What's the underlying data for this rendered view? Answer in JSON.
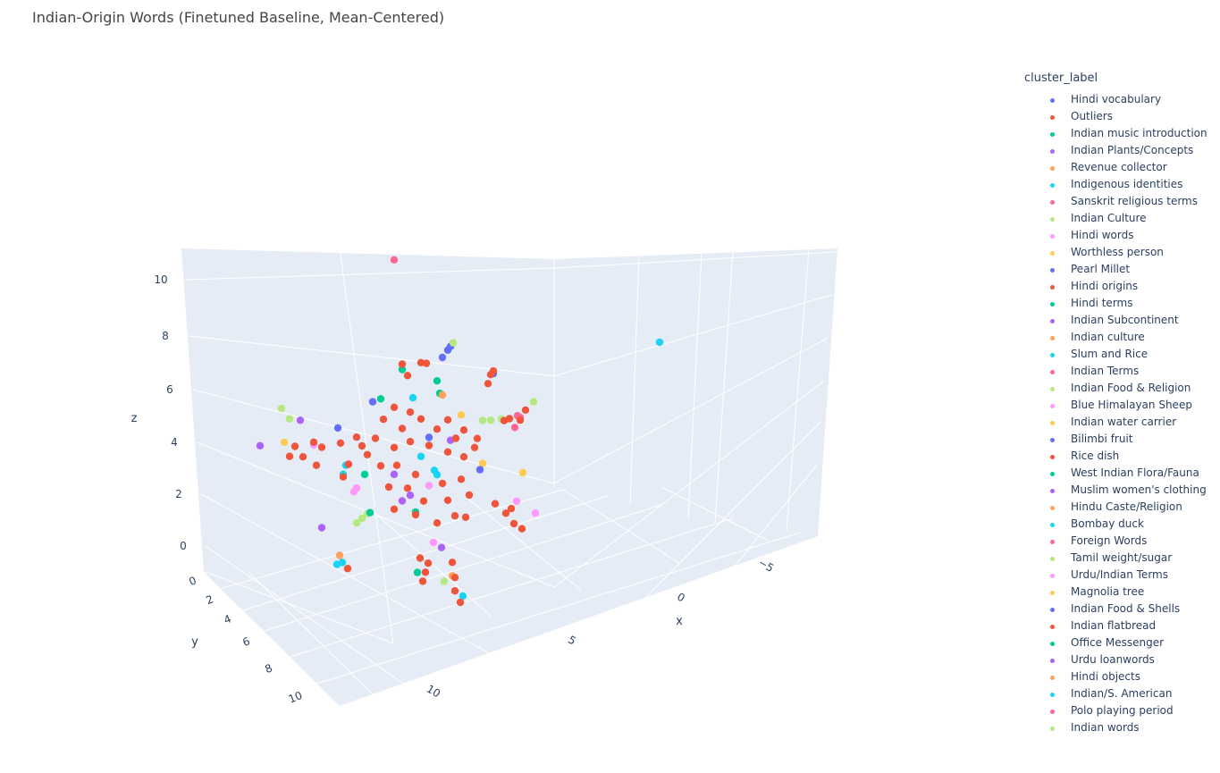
{
  "title": "Indian-Origin Words (Finetuned Baseline, Mean-Centered)",
  "legend": {
    "title": "cluster_label",
    "items": [
      {
        "label": "Hindi vocabulary",
        "color": "#636efa"
      },
      {
        "label": "Outliers",
        "color": "#EF553B"
      },
      {
        "label": "Indian music introduction",
        "color": "#00cc96"
      },
      {
        "label": "Indian Plants/Concepts",
        "color": "#ab63fa"
      },
      {
        "label": "Revenue collector",
        "color": "#FFA15A"
      },
      {
        "label": "Indigenous identities",
        "color": "#19d3f3"
      },
      {
        "label": "Sanskrit religious terms",
        "color": "#FF6692"
      },
      {
        "label": "Indian Culture",
        "color": "#B6E880"
      },
      {
        "label": "Hindi words",
        "color": "#FF97FF"
      },
      {
        "label": "Worthless person",
        "color": "#FECB52"
      },
      {
        "label": "Pearl Millet",
        "color": "#636efa"
      },
      {
        "label": "Hindi origins",
        "color": "#EF553B"
      },
      {
        "label": "Hindi terms",
        "color": "#00cc96"
      },
      {
        "label": "Indian Subcontinent",
        "color": "#ab63fa"
      },
      {
        "label": "Indian culture",
        "color": "#FFA15A"
      },
      {
        "label": "Slum and Rice",
        "color": "#19d3f3"
      },
      {
        "label": "Indian Terms",
        "color": "#FF6692"
      },
      {
        "label": "Indian Food & Religion",
        "color": "#B6E880"
      },
      {
        "label": "Blue Himalayan Sheep",
        "color": "#FF97FF"
      },
      {
        "label": "Indian water carrier",
        "color": "#FECB52"
      },
      {
        "label": "Bilimbi fruit",
        "color": "#636efa"
      },
      {
        "label": "Rice dish",
        "color": "#EF553B"
      },
      {
        "label": "West Indian Flora/Fauna",
        "color": "#00cc96"
      },
      {
        "label": "Muslim women's clothing",
        "color": "#ab63fa"
      },
      {
        "label": "Hindu Caste/Religion",
        "color": "#FFA15A"
      },
      {
        "label": "Bombay duck",
        "color": "#19d3f3"
      },
      {
        "label": "Foreign Words",
        "color": "#FF6692"
      },
      {
        "label": "Tamil weight/sugar",
        "color": "#B6E880"
      },
      {
        "label": "Urdu/Indian Terms",
        "color": "#FF97FF"
      },
      {
        "label": "Magnolia tree",
        "color": "#FECB52"
      },
      {
        "label": "Indian Food & Shells",
        "color": "#636efa"
      },
      {
        "label": "Indian flatbread",
        "color": "#EF553B"
      },
      {
        "label": "Office Messenger",
        "color": "#00cc96"
      },
      {
        "label": "Urdu loanwords",
        "color": "#ab63fa"
      },
      {
        "label": "Hindi objects",
        "color": "#FFA15A"
      },
      {
        "label": "Indian/S. American",
        "color": "#19d3f3"
      },
      {
        "label": "Polo playing period",
        "color": "#FF6692"
      },
      {
        "label": "Indian words",
        "color": "#B6E880"
      }
    ]
  },
  "chart_data": {
    "type": "scatter3d",
    "title": "Indian-Origin Words (Finetuned Baseline, Mean-Centered)",
    "xlabel": "x",
    "ylabel": "y",
    "zlabel": "z",
    "x_ticks": [
      "10",
      "5",
      "0",
      "−5"
    ],
    "y_ticks": [
      "0",
      "2",
      "4",
      "6",
      "8",
      "10"
    ],
    "z_ticks": [
      "10",
      "8",
      "6",
      "4",
      "2",
      "0"
    ],
    "xlim": [
      -8,
      13
    ],
    "ylim": [
      0,
      11
    ],
    "zlim": [
      -1,
      11
    ],
    "grid": true,
    "legend_position": "right",
    "color_by": "cluster_label",
    "point_fields": [
      "x",
      "y",
      "z",
      "cluster_index"
    ],
    "points": [
      [
        7.8,
        5,
        10.7,
        6
      ],
      [
        -2.1,
        5,
        4.0,
        5
      ],
      [
        5.8,
        5,
        6.6,
        0
      ],
      [
        5.7,
        5,
        6.7,
        0
      ],
      [
        6.0,
        5,
        6.4,
        0
      ],
      [
        5.6,
        5,
        6.8,
        7
      ],
      [
        7.5,
        5,
        6.7,
        1
      ],
      [
        6.8,
        5,
        6.5,
        1
      ],
      [
        7.3,
        5,
        6.2,
        1
      ],
      [
        6.6,
        5,
        6.4,
        1
      ],
      [
        7.5,
        5,
        6.5,
        2
      ],
      [
        6.2,
        5,
        5.6,
        2
      ],
      [
        4.2,
        5,
        5.1,
        1
      ],
      [
        4.1,
        5,
        5.2,
        1
      ],
      [
        4.3,
        5,
        4.8,
        1
      ],
      [
        4.1,
        5,
        5.1,
        0
      ],
      [
        6.1,
        5,
        5.1,
        2
      ],
      [
        7.1,
        5,
        5.3,
        5
      ],
      [
        6.0,
        5,
        5.0,
        4
      ],
      [
        2.6,
        5,
        3.5,
        7
      ],
      [
        8.6,
        5,
        5.7,
        0
      ],
      [
        8.3,
        5,
        5.7,
        2
      ],
      [
        3.1,
        5,
        3.1,
        6
      ],
      [
        3.2,
        5,
        3.2,
        6
      ],
      [
        3.3,
        5,
        2.8,
        6
      ],
      [
        2.9,
        5,
        3.3,
        1
      ],
      [
        3.1,
        5,
        3.0,
        1
      ],
      [
        4.5,
        5,
        3.5,
        7
      ],
      [
        3.8,
        5,
        3.3,
        7
      ],
      [
        4.2,
        5,
        3.4,
        7
      ],
      [
        3.7,
        5,
        3.2,
        1
      ],
      [
        3.5,
        5,
        3.2,
        1
      ],
      [
        5.3,
        5,
        4.0,
        9
      ],
      [
        12.0,
        5,
        6.7,
        7
      ],
      [
        11.7,
        5,
        6.2,
        7
      ],
      [
        11.3,
        5,
        6.0,
        3
      ],
      [
        12.8,
        5,
        5.6,
        3
      ],
      [
        11.9,
        5,
        5.4,
        9
      ],
      [
        11.5,
        5,
        5.1,
        1
      ],
      [
        10.8,
        5,
        5.0,
        1
      ],
      [
        10.5,
        5,
        4.7,
        1
      ],
      [
        11.2,
        5,
        4.6,
        1
      ],
      [
        11.7,
        5,
        4.8,
        1
      ],
      [
        10.7,
        5,
        4.1,
        1
      ],
      [
        9.8,
        5,
        4.6,
        1
      ],
      [
        9.2,
        5,
        4.6,
        1
      ],
      [
        9.0,
        5,
        4.2,
        1
      ],
      [
        9.9,
        5,
        5.2,
        0
      ],
      [
        10.8,
        5,
        4.9,
        8
      ],
      [
        9.5,
        5,
        3.7,
        1
      ],
      [
        9.7,
        5,
        3.3,
        1
      ],
      [
        9.6,
        5,
        3.7,
        5
      ],
      [
        9.7,
        5,
        3.4,
        5
      ],
      [
        9.3,
        5,
        2.6,
        8
      ],
      [
        9.2,
        5,
        2.7,
        8
      ],
      [
        8.9,
        5,
        3.1,
        2
      ],
      [
        7.8,
        5,
        2.7,
        3
      ],
      [
        7.5,
        5,
        1.6,
        3
      ],
      [
        7.2,
        5,
        1.7,
        3
      ],
      [
        6.3,
        5,
        2.3,
        5
      ],
      [
        6.2,
        5,
        2.1,
        5
      ],
      [
        6.8,
        5,
        3.0,
        5
      ],
      [
        3.0,
        5,
        1.0,
        9
      ],
      [
        4.5,
        5,
        1.9,
        9
      ],
      [
        4.6,
        5,
        1.7,
        0
      ],
      [
        8.8,
        5,
        1.6,
        7
      ],
      [
        9.0,
        5,
        1.5,
        7
      ],
      [
        9.2,
        5,
        1.4,
        7
      ],
      [
        8.7,
        5,
        1.6,
        2
      ],
      [
        10.5,
        5,
        1.7,
        3
      ],
      [
        5.7,
        9,
        2.5,
        1
      ],
      [
        5.3,
        9,
        2.0,
        1
      ],
      [
        5.0,
        9,
        1.5,
        1
      ],
      [
        4.7,
        9,
        1.2,
        1
      ],
      [
        5.1,
        9,
        2.1,
        1
      ],
      [
        4.2,
        9,
        1.6,
        8
      ],
      [
        4.9,
        9,
        2.3,
        8
      ],
      [
        6.8,
        9,
        2.4,
        1
      ],
      [
        7.2,
        9,
        2.6,
        1
      ],
      [
        11.6,
        9,
        2.4,
        5
      ],
      [
        11.4,
        9,
        2.4,
        5
      ],
      [
        11.5,
        9,
        2.7,
        4
      ],
      [
        11.2,
        9,
        2.1,
        1
      ],
      [
        8.5,
        9,
        1.5,
        1
      ],
      [
        8.3,
        9,
        0.9,
        1
      ],
      [
        8.2,
        9,
        1.2,
        1
      ],
      [
        8.4,
        9,
        0.6,
        1
      ],
      [
        7.3,
        9,
        0.9,
        1
      ],
      [
        7.2,
        9,
        0.3,
        1
      ],
      [
        7.2,
        9,
        -0.2,
        1
      ],
      [
        7.0,
        9,
        -0.7,
        1
      ],
      [
        8.6,
        9,
        1.0,
        2
      ],
      [
        6.9,
        9,
        -0.5,
        5
      ],
      [
        7.3,
        9,
        0.4,
        4
      ],
      [
        7.7,
        9,
        1.6,
        3
      ],
      [
        8.0,
        9,
        1.9,
        8
      ],
      [
        7.6,
        9,
        0.3,
        7
      ],
      [
        8.2,
        5,
        4.9,
        1
      ],
      [
        7.5,
        5,
        4.3,
        1
      ],
      [
        6.8,
        5,
        4.4,
        1
      ],
      [
        6.2,
        5,
        3.8,
        1
      ],
      [
        5.5,
        5,
        3.2,
        1
      ],
      [
        4.8,
        5,
        2.6,
        1
      ],
      [
        7.8,
        5,
        3.7,
        1
      ],
      [
        7.2,
        5,
        3.7,
        1
      ],
      [
        6.5,
        5,
        3.3,
        1
      ],
      [
        5.8,
        5,
        2.8,
        1
      ],
      [
        5.2,
        5,
        2.4,
        1
      ],
      [
        8.3,
        5,
        3.2,
        1
      ],
      [
        7.7,
        5,
        3.0,
        1
      ],
      [
        7.0,
        5,
        2.4,
        1
      ],
      [
        6.0,
        5,
        1.7,
        1
      ],
      [
        5.3,
        5,
        1.6,
        1
      ],
      [
        8.0,
        5,
        2.3,
        1
      ],
      [
        7.3,
        5,
        2.0,
        1
      ],
      [
        6.7,
        5,
        1.3,
        1
      ],
      [
        5.8,
        5,
        1.0,
        1
      ],
      [
        5.0,
        5,
        0.9,
        1
      ],
      [
        7.8,
        5,
        1.4,
        1
      ],
      [
        7.0,
        5,
        0.9,
        1
      ],
      [
        6.2,
        5,
        0.3,
        1
      ],
      [
        7.2,
        5,
        4.8,
        1
      ],
      [
        7.8,
        5,
        5.2,
        1
      ],
      [
        5.8,
        5,
        4.0,
        1
      ],
      [
        5.2,
        5,
        3.4,
        1
      ],
      [
        4.7,
        5,
        2.9,
        1
      ],
      [
        8.5,
        5,
        4.3,
        1
      ],
      [
        8.8,
        5,
        3.8,
        1
      ],
      [
        5.7,
        5,
        3.2,
        3
      ],
      [
        6.5,
        5,
        3.6,
        0
      ],
      [
        7.0,
        5,
        1.0,
        2
      ],
      [
        6.5,
        5,
        1.8,
        8
      ]
    ]
  }
}
